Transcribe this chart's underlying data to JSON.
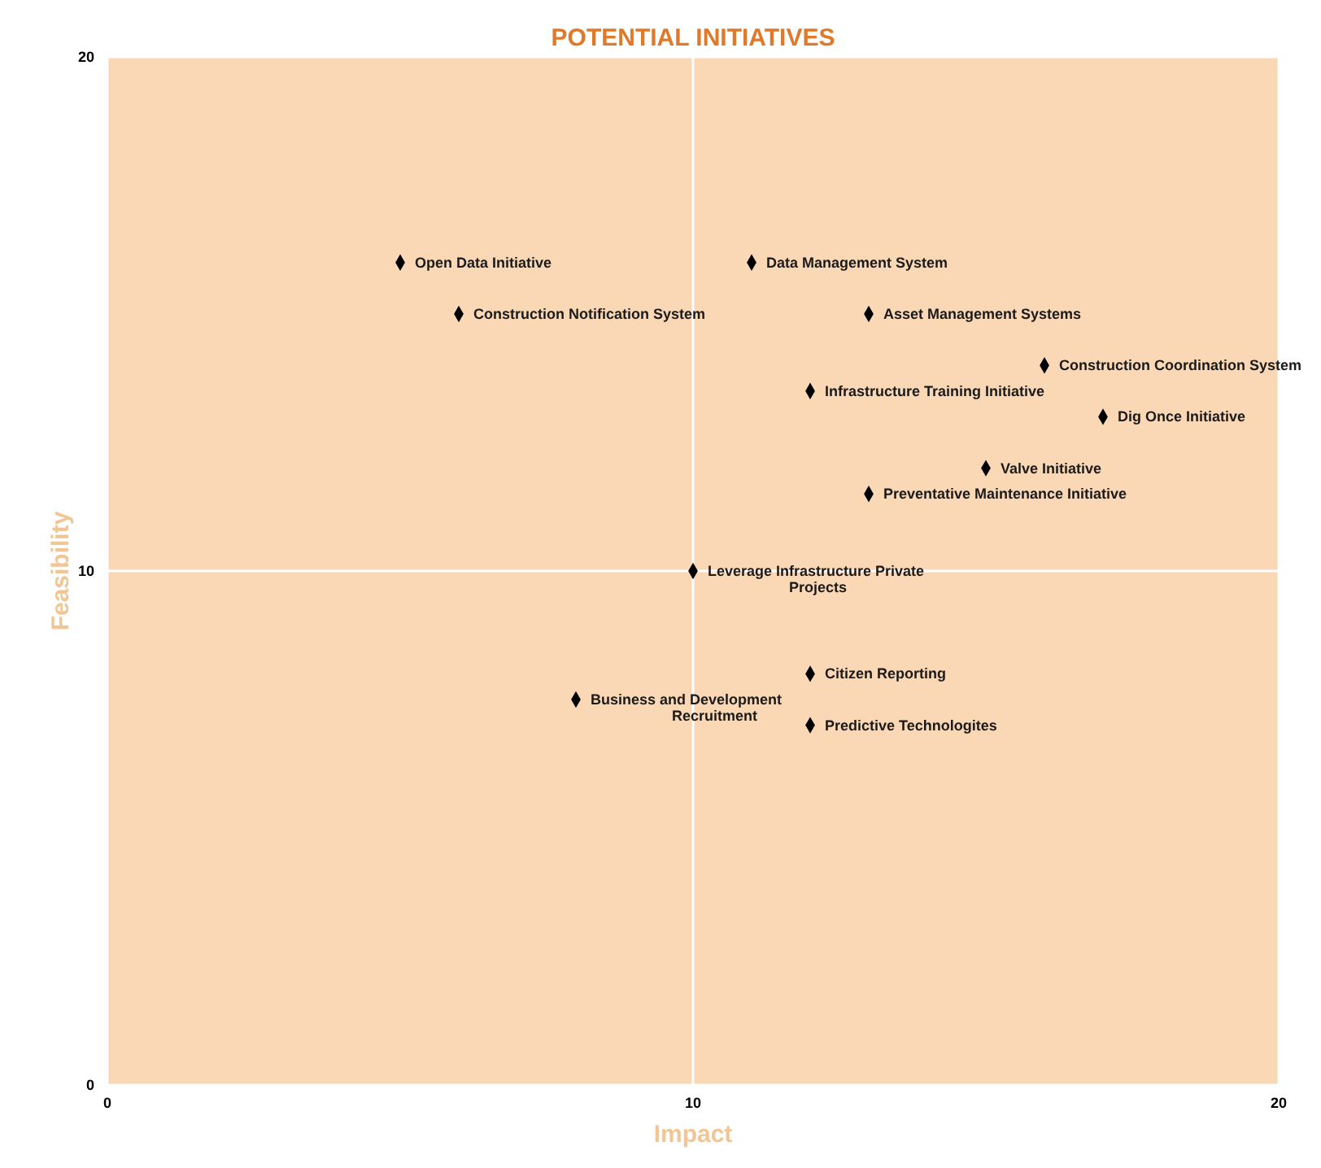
{
  "chart_data": {
    "type": "scatter",
    "title": "POTENTIAL  INITIATIVES",
    "xlabel": "Impact",
    "ylabel": "Feasibility",
    "series": [
      {
        "color": "#000000",
        "x": [
          5,
          6,
          11,
          13,
          16,
          12,
          17,
          15,
          13,
          10,
          12,
          8,
          12
        ],
        "values": [
          16,
          15,
          16,
          15,
          14,
          13.5,
          13,
          12,
          11.5,
          10,
          8,
          7.5,
          7
        ]
      }
    ],
    "marker": "diamond",
    "xlim": [
      0,
      20
    ],
    "ylim": [
      0,
      20
    ],
    "xticks": [
      0,
      10,
      20
    ],
    "yticks": [
      0,
      10,
      20
    ],
    "grid": true,
    "annotations": [
      {
        "text": "Open Data Initiative",
        "x": 5,
        "y": 16
      },
      {
        "text": "Construction Notification System",
        "x": 6,
        "y": 15
      },
      {
        "text": "Data Management System",
        "x": 11,
        "y": 16
      },
      {
        "text": "Asset  Management Systems",
        "x": 13,
        "y": 15
      },
      {
        "text": "Construction Coordination System",
        "x": 16,
        "y": 14
      },
      {
        "text": "Infrastructure Training Initiative",
        "x": 12,
        "y": 13.5
      },
      {
        "text": "Dig Once Initiative",
        "x": 17,
        "y": 13
      },
      {
        "text": "Valve Initiative",
        "x": 15,
        "y": 12
      },
      {
        "text": "Preventative Maintenance Initiative",
        "x": 13,
        "y": 11.5
      },
      {
        "text": "Leverage  Infrastructure Private\nProjects",
        "x": 10,
        "y": 10
      },
      {
        "text": "Citizen Reporting",
        "x": 12,
        "y": 8
      },
      {
        "text": "Business and Development\nRecruitment",
        "x": 8,
        "y": 7.5
      },
      {
        "text": "Predictive Technologites",
        "x": 12,
        "y": 7
      }
    ]
  }
}
